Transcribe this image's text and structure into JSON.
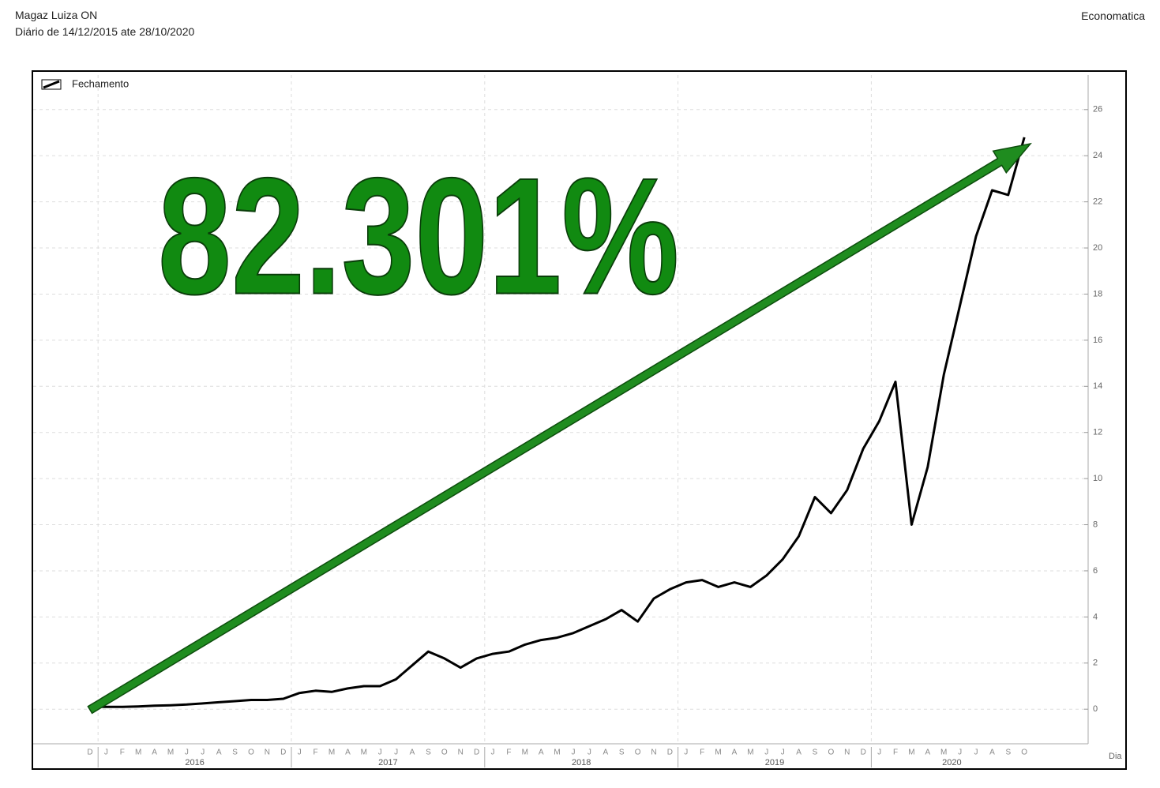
{
  "chart_data": {
    "type": "line",
    "title": "Magaz Luiza ON",
    "subtitle": "Diário de 14/12/2015 ate 28/10/2020",
    "source": "Economatica",
    "annotation": "82.301%",
    "xlabel": "Dia",
    "x": [
      "2015-12",
      "2016-01",
      "2016-02",
      "2016-03",
      "2016-04",
      "2016-05",
      "2016-06",
      "2016-07",
      "2016-08",
      "2016-09",
      "2016-10",
      "2016-11",
      "2016-12",
      "2017-01",
      "2017-02",
      "2017-03",
      "2017-04",
      "2017-05",
      "2017-06",
      "2017-07",
      "2017-08",
      "2017-09",
      "2017-10",
      "2017-11",
      "2017-12",
      "2018-01",
      "2018-02",
      "2018-03",
      "2018-04",
      "2018-05",
      "2018-06",
      "2018-07",
      "2018-08",
      "2018-09",
      "2018-10",
      "2018-11",
      "2018-12",
      "2019-01",
      "2019-02",
      "2019-03",
      "2019-04",
      "2019-05",
      "2019-06",
      "2019-07",
      "2019-08",
      "2019-09",
      "2019-10",
      "2019-11",
      "2019-12",
      "2020-01",
      "2020-02",
      "2020-03",
      "2020-04",
      "2020-05",
      "2020-06",
      "2020-07",
      "2020-08",
      "2020-09",
      "2020-10"
    ],
    "month_labels": [
      "D",
      "J",
      "F",
      "M",
      "A",
      "M",
      "J",
      "J",
      "A",
      "S",
      "O",
      "N",
      "D",
      "J",
      "F",
      "M",
      "A",
      "M",
      "J",
      "J",
      "A",
      "S",
      "O",
      "N",
      "D",
      "J",
      "F",
      "M",
      "A",
      "M",
      "J",
      "J",
      "A",
      "S",
      "O",
      "N",
      "D",
      "J",
      "F",
      "M",
      "A",
      "M",
      "J",
      "J",
      "A",
      "S",
      "O",
      "N",
      "D",
      "J",
      "F",
      "M",
      "A",
      "M",
      "J",
      "J",
      "A",
      "S",
      "O"
    ],
    "year_labels": [
      "2016",
      "2017",
      "2018",
      "2019",
      "2020"
    ],
    "series": [
      {
        "name": "Fechamento",
        "color": "#000000",
        "values": [
          0.1,
          0.1,
          0.1,
          0.12,
          0.15,
          0.17,
          0.2,
          0.25,
          0.3,
          0.35,
          0.4,
          0.4,
          0.45,
          0.7,
          0.8,
          0.75,
          0.9,
          1.0,
          1.0,
          1.3,
          1.9,
          2.5,
          2.2,
          1.8,
          2.2,
          2.4,
          2.5,
          2.8,
          3.0,
          3.1,
          3.3,
          3.6,
          3.9,
          4.3,
          3.8,
          4.8,
          5.2,
          5.5,
          5.6,
          5.3,
          5.5,
          5.3,
          5.8,
          6.5,
          7.5,
          9.2,
          8.5,
          9.5,
          11.3,
          12.5,
          14.2,
          8.0,
          10.5,
          14.5,
          17.5,
          20.5,
          22.5,
          22.3,
          24.8
        ]
      }
    ],
    "ylim": [
      -1.5,
      27.5
    ],
    "yticks": [
      0,
      2,
      4,
      6,
      8,
      10,
      12,
      14,
      16,
      18,
      20,
      22,
      24,
      26
    ],
    "grid": true,
    "legend": "top-left"
  }
}
